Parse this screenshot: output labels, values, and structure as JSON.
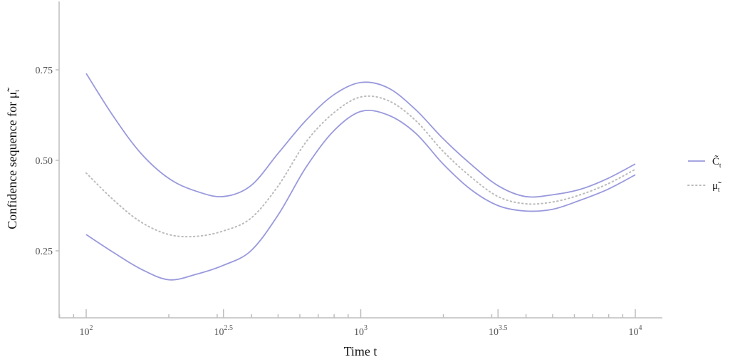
{
  "chart_data": {
    "type": "line",
    "xscale": "log10",
    "xlim": [
      80,
      11000
    ],
    "ylim": [
      0.1,
      0.95
    ],
    "grid": false,
    "legend_position": "right",
    "xlabel": "Time t",
    "ylabel": "Confidence sequence for μ̃",
    "ylabel_sub": "t",
    "x_ticks": [
      {
        "value": 100,
        "base": "10",
        "exp": "2"
      },
      {
        "value": 316.23,
        "base": "10",
        "exp": "2.5"
      },
      {
        "value": 1000,
        "base": "10",
        "exp": "3"
      },
      {
        "value": 3162.3,
        "base": "10",
        "exp": "3.5"
      },
      {
        "value": 10000,
        "base": "10",
        "exp": "4"
      }
    ],
    "y_ticks": [
      {
        "value": 0.25,
        "label": "0.25"
      },
      {
        "value": 0.5,
        "label": "0.50"
      },
      {
        "value": 0.75,
        "label": "0.75"
      }
    ],
    "legend": [
      {
        "symbol": "C̃",
        "sub": "t",
        "style": "solid",
        "color": "#9999dd"
      },
      {
        "symbol": "μ̃",
        "sub": "t",
        "style": "dotted",
        "color": "#bbbbbb"
      }
    ],
    "series": [
      {
        "role": "upper",
        "style": "solid",
        "color": "#9999dd",
        "x": [
          100,
          126,
          158,
          200,
          251,
          316,
          398,
          501,
          631,
          794,
          1000,
          1259,
          1585,
          1995,
          2512,
          3162,
          3981,
          5012,
          6310,
          7943,
          10000
        ],
        "y": [
          0.74,
          0.62,
          0.52,
          0.45,
          0.415,
          0.4,
          0.43,
          0.52,
          0.61,
          0.68,
          0.715,
          0.7,
          0.64,
          0.56,
          0.49,
          0.43,
          0.4,
          0.405,
          0.42,
          0.45,
          0.49
        ]
      },
      {
        "role": "lower",
        "style": "solid",
        "color": "#9999dd",
        "x": [
          100,
          126,
          158,
          200,
          251,
          316,
          398,
          501,
          631,
          794,
          1000,
          1259,
          1585,
          1995,
          2512,
          3162,
          3981,
          5012,
          6310,
          7943,
          10000
        ],
        "y": [
          0.295,
          0.245,
          0.2,
          0.17,
          0.185,
          0.21,
          0.25,
          0.35,
          0.48,
          0.58,
          0.635,
          0.625,
          0.575,
          0.49,
          0.42,
          0.375,
          0.36,
          0.365,
          0.39,
          0.42,
          0.46
        ]
      },
      {
        "role": "estimate",
        "style": "dotted",
        "color": "#bbbbbb",
        "x": [
          100,
          126,
          158,
          200,
          251,
          316,
          398,
          501,
          631,
          794,
          1000,
          1259,
          1585,
          1995,
          2512,
          3162,
          3981,
          5012,
          6310,
          7943,
          10000
        ],
        "y": [
          0.465,
          0.39,
          0.33,
          0.295,
          0.29,
          0.305,
          0.34,
          0.43,
          0.55,
          0.63,
          0.675,
          0.665,
          0.61,
          0.525,
          0.455,
          0.4,
          0.38,
          0.385,
          0.405,
          0.435,
          0.475
        ]
      }
    ]
  }
}
